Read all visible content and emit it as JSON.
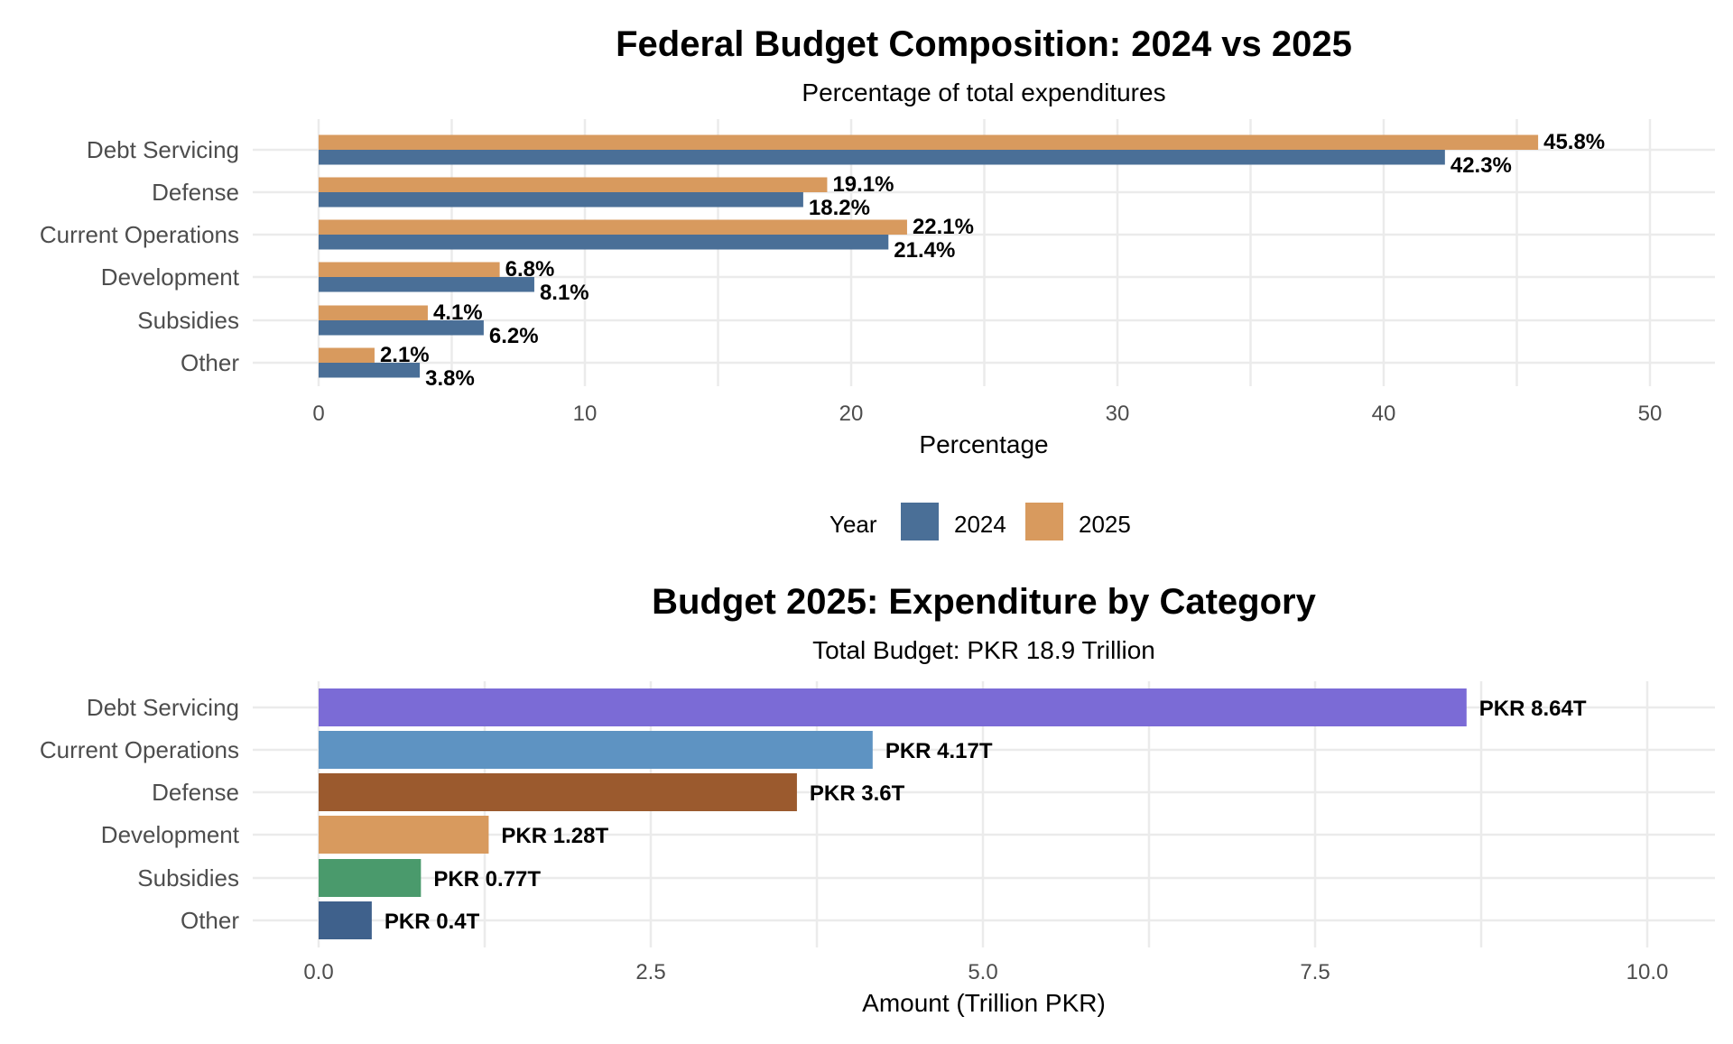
{
  "chart_data": [
    {
      "type": "bar",
      "orientation": "horizontal",
      "title": "Federal Budget Composition: 2024 vs 2025",
      "subtitle": "Percentage of total expenditures",
      "xlabel": "Percentage",
      "ylabel": "",
      "xlim": [
        0,
        52
      ],
      "xticks": [
        0,
        10,
        20,
        30,
        40,
        50
      ],
      "categories": [
        "Debt Servicing",
        "Defense",
        "Current Operations",
        "Development",
        "Subsidies",
        "Other"
      ],
      "series": [
        {
          "name": "2024",
          "color": "#4a6f97",
          "values": [
            42.3,
            18.2,
            21.4,
            8.1,
            6.2,
            3.8
          ],
          "labels": [
            "42.3%",
            "18.2%",
            "21.4%",
            "8.1%",
            "6.2%",
            "3.8%"
          ]
        },
        {
          "name": "2025",
          "color": "#d89a5e",
          "values": [
            45.8,
            19.1,
            22.1,
            6.8,
            4.1,
            2.1
          ],
          "labels": [
            "45.8%",
            "19.1%",
            "22.1%",
            "6.8%",
            "4.1%",
            "2.1%"
          ]
        }
      ],
      "grid": true,
      "legend": {
        "title": "Year",
        "position": "bottom"
      }
    },
    {
      "type": "bar",
      "orientation": "horizontal",
      "title": "Budget 2025: Expenditure by Category",
      "subtitle": "Total Budget: PKR 18.9 Trillion",
      "xlabel": "Amount (Trillion PKR)",
      "ylabel": "",
      "xlim": [
        0,
        10.5
      ],
      "xticks": [
        "0.0",
        "2.5",
        "5.0",
        "7.5",
        "10.0"
      ],
      "categories": [
        "Debt Servicing",
        "Current Operations",
        "Defense",
        "Development",
        "Subsidies",
        "Other"
      ],
      "values": [
        8.64,
        4.17,
        3.6,
        1.28,
        0.77,
        0.4
      ],
      "labels": [
        "PKR 8.64T",
        "PKR 4.17T",
        "PKR 3.6T",
        "PKR 1.28T",
        "PKR 0.77T",
        "PKR 0.4T"
      ],
      "colors": [
        "#7b6bd6",
        "#5e93c2",
        "#9b5a2e",
        "#d89a5e",
        "#4a9a6c",
        "#3f618c"
      ],
      "grid": true
    }
  ]
}
